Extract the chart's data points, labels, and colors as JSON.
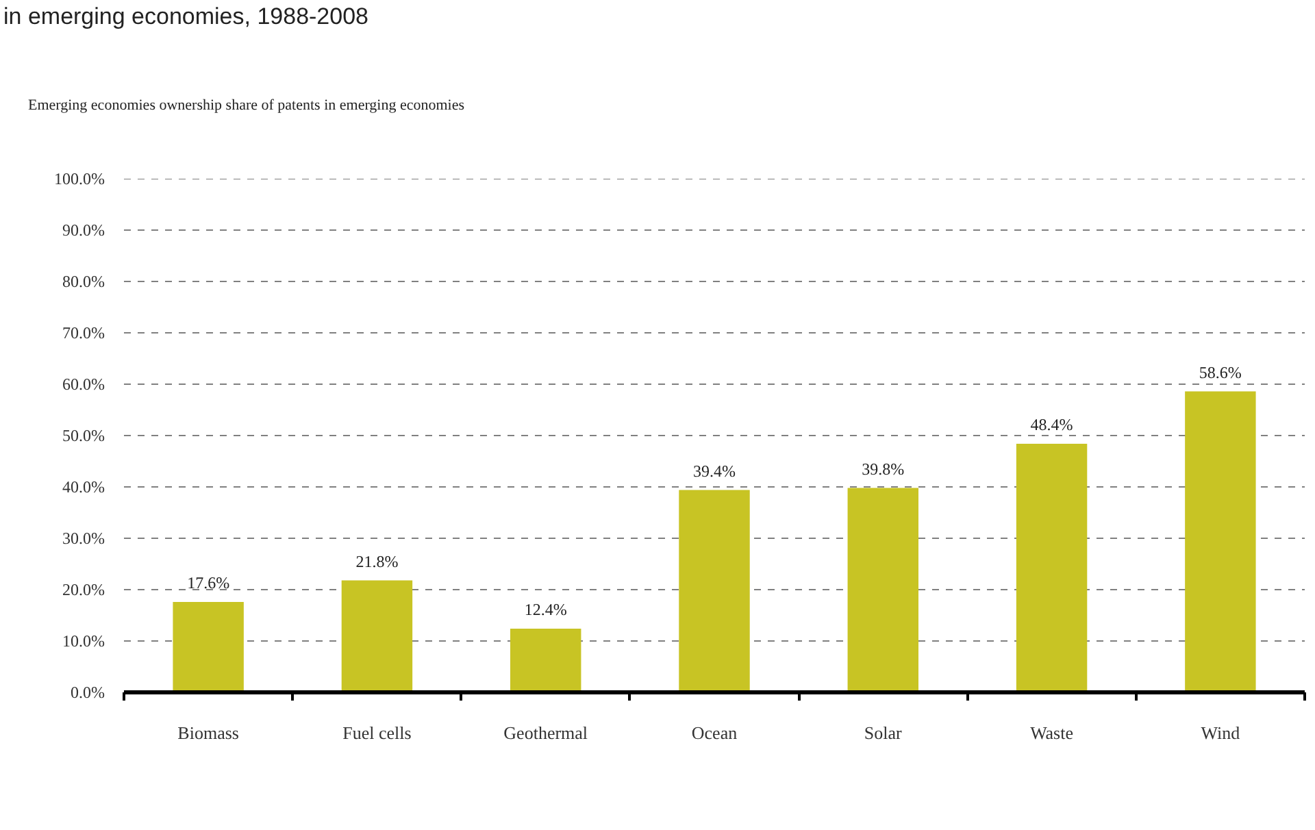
{
  "chart_data": {
    "type": "bar",
    "title": "in emerging economies, 1988-2008",
    "subtitle": "Emerging economies ownership share of patents in emerging economies",
    "categories": [
      "Biomass",
      "Fuel cells",
      "Geothermal",
      "Ocean",
      "Solar",
      "Waste",
      "Wind"
    ],
    "values": [
      17.6,
      21.8,
      12.4,
      39.4,
      39.8,
      48.4,
      58.6
    ],
    "value_labels": [
      "17.6%",
      "21.8%",
      "12.4%",
      "39.4%",
      "39.8%",
      "48.4%",
      "58.6%"
    ],
    "color": "#c8c424",
    "ylim": [
      0,
      100
    ],
    "yticks": [
      {
        "value": 0,
        "label": "0.0%"
      },
      {
        "value": 10,
        "label": "10.0%"
      },
      {
        "value": 20,
        "label": "20.0%"
      },
      {
        "value": 30,
        "label": "30.0%"
      },
      {
        "value": 40,
        "label": "40.0%"
      },
      {
        "value": 50,
        "label": "50.0%"
      },
      {
        "value": 60,
        "label": "60.0%"
      },
      {
        "value": 70,
        "label": "70.0%"
      },
      {
        "value": 80,
        "label": "80.0%"
      },
      {
        "value": 90,
        "label": "90.0%"
      },
      {
        "value": 100,
        "label": "100.0%"
      }
    ],
    "grid": "y"
  }
}
